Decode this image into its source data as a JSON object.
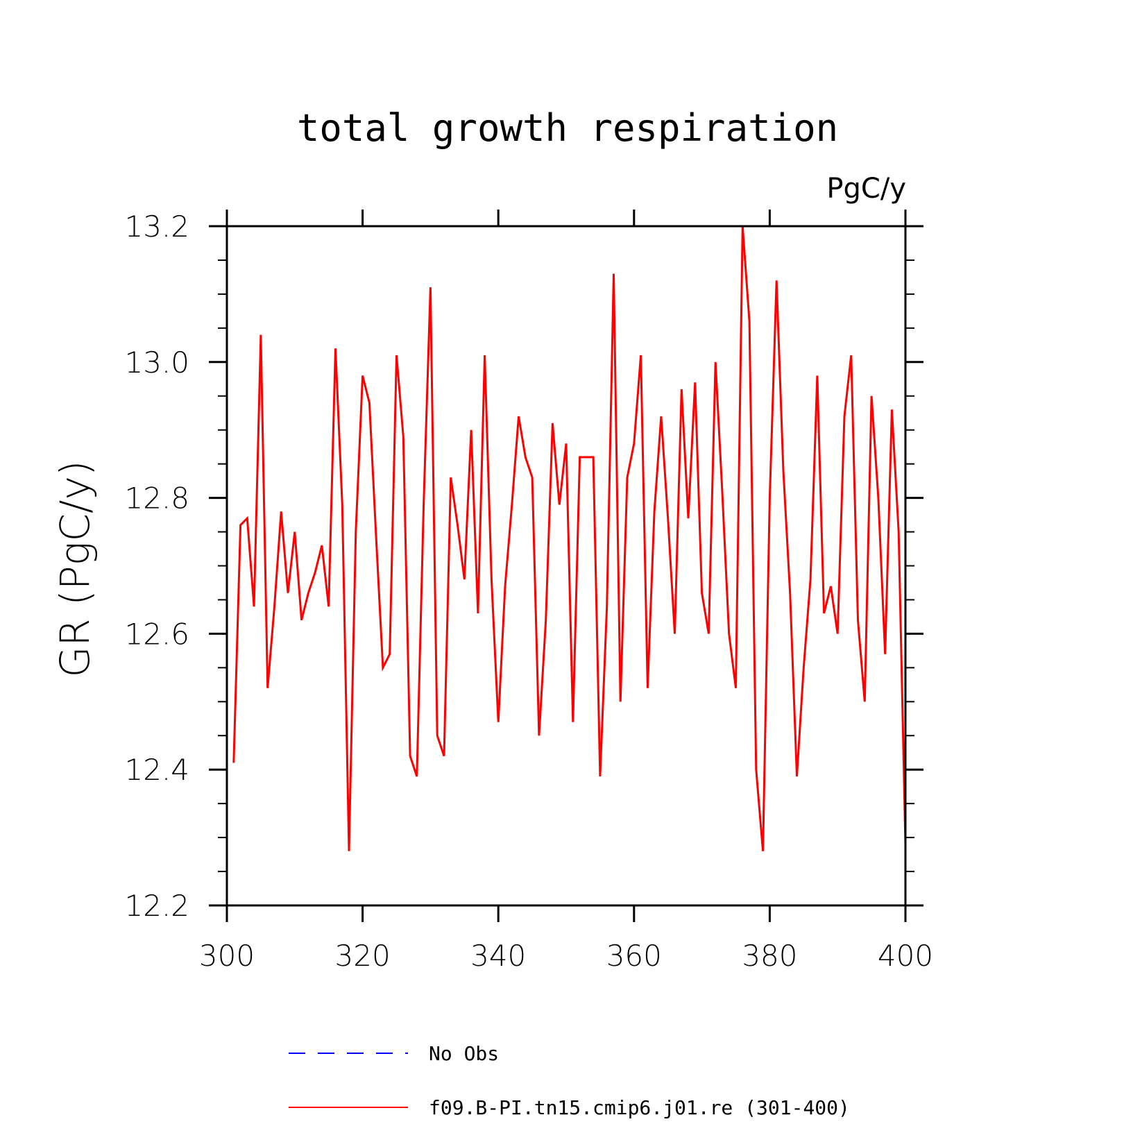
{
  "chart_data": {
    "type": "line",
    "title": "total growth respiration",
    "units_label": "PgC/y",
    "ylabel": "GR  (PgC/y)",
    "xlabel": "",
    "xlim": [
      300,
      400
    ],
    "ylim": [
      12.2,
      13.2
    ],
    "x_ticks": [
      "300",
      "320",
      "340",
      "360",
      "380",
      "400"
    ],
    "y_ticks": [
      "12.2",
      "12.4",
      "12.6",
      "12.8",
      "13.0",
      "13.2"
    ],
    "series": [
      {
        "name": "f09.B-PI.tn15.cmip6.j01.re (301-400)",
        "color": "#ff0000",
        "style": "solid",
        "x": [
          301,
          302,
          303,
          304,
          305,
          306,
          307,
          308,
          309,
          310,
          311,
          312,
          313,
          314,
          315,
          316,
          317,
          318,
          319,
          320,
          321,
          322,
          323,
          324,
          325,
          326,
          327,
          328,
          329,
          330,
          331,
          332,
          333,
          334,
          335,
          336,
          337,
          338,
          339,
          340,
          341,
          342,
          343,
          344,
          345,
          346,
          347,
          348,
          349,
          350,
          351,
          352,
          353,
          354,
          355,
          356,
          357,
          358,
          359,
          360,
          361,
          362,
          363,
          364,
          365,
          366,
          367,
          368,
          369,
          370,
          371,
          372,
          373,
          374,
          375,
          376,
          377,
          378,
          379,
          380,
          381,
          382,
          383,
          384,
          385,
          386,
          387,
          388,
          389,
          390,
          391,
          392,
          393,
          394,
          395,
          396,
          397,
          398,
          399,
          400
        ],
        "values": [
          12.41,
          12.76,
          12.77,
          12.64,
          13.04,
          12.52,
          12.64,
          12.78,
          12.66,
          12.75,
          12.62,
          12.66,
          12.69,
          12.73,
          12.64,
          13.02,
          12.79,
          12.28,
          12.75,
          12.98,
          12.94,
          12.74,
          12.55,
          12.57,
          13.01,
          12.89,
          12.42,
          12.39,
          12.79,
          13.11,
          12.45,
          12.42,
          12.83,
          12.76,
          12.68,
          12.9,
          12.63,
          13.01,
          12.68,
          12.47,
          12.67,
          12.79,
          12.92,
          12.86,
          12.83,
          12.45,
          12.62,
          12.91,
          12.79,
          12.88,
          12.47,
          12.86,
          12.86,
          12.86,
          12.39,
          12.64,
          13.13,
          12.5,
          12.83,
          12.88,
          13.01,
          12.52,
          12.78,
          12.92,
          12.77,
          12.6,
          12.96,
          12.77,
          12.97,
          12.66,
          12.6,
          13.0,
          12.81,
          12.6,
          12.52,
          13.2,
          13.06,
          12.4,
          12.28,
          12.8,
          13.12,
          12.84,
          12.66,
          12.39,
          12.55,
          12.68,
          12.98,
          12.63,
          12.67,
          12.6,
          12.92,
          13.01,
          12.62,
          12.5,
          12.95,
          12.8,
          12.57,
          12.93,
          12.75,
          12.29
        ]
      }
    ],
    "legend": [
      {
        "label": "No Obs",
        "color": "#0000ff",
        "style": "dashed"
      },
      {
        "label": "f09.B-PI.tn15.cmip6.j01.re (301-400)",
        "color": "#ff0000",
        "style": "solid"
      }
    ],
    "legend_placement": "bottom"
  }
}
